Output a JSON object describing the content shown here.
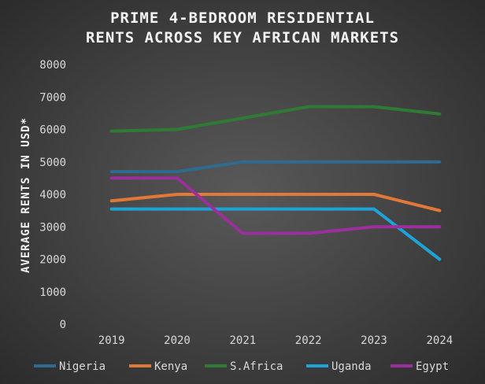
{
  "chart_data": {
    "type": "line",
    "title_lines": [
      "PRIME 4-BEDROOM RESIDENTIAL",
      "RENTS ACROSS KEY AFRICAN MARKETS"
    ],
    "xlabel": "",
    "ylabel": "AVERAGE RENTS IN USD*",
    "categories": [
      "2019",
      "2020",
      "2021",
      "2022",
      "2023",
      "2024"
    ],
    "ylim": [
      0,
      8000
    ],
    "yticks": [
      "0",
      "1000",
      "2000",
      "3000",
      "4000",
      "5000",
      "6000",
      "7000",
      "8000"
    ],
    "grid": false,
    "legend_position": "bottom",
    "series": [
      {
        "name": "Nigeria",
        "color": "#2e6b8f",
        "values": [
          4700,
          4700,
          5000,
          5000,
          5000,
          5000
        ]
      },
      {
        "name": "Kenya",
        "color": "#e0783a",
        "values": [
          3800,
          4000,
          4000,
          4000,
          4000,
          3500
        ]
      },
      {
        "name": "S.Africa",
        "color": "#2f7a34",
        "values": [
          5950,
          6000,
          6350,
          6700,
          6700,
          6480
        ]
      },
      {
        "name": "Uganda",
        "color": "#1ea3d6",
        "values": [
          3550,
          3550,
          3550,
          3550,
          3550,
          2000
        ]
      },
      {
        "name": "Egypt",
        "color": "#9b2f9e",
        "values": [
          4500,
          4500,
          2800,
          2800,
          3000,
          3000
        ]
      }
    ]
  }
}
